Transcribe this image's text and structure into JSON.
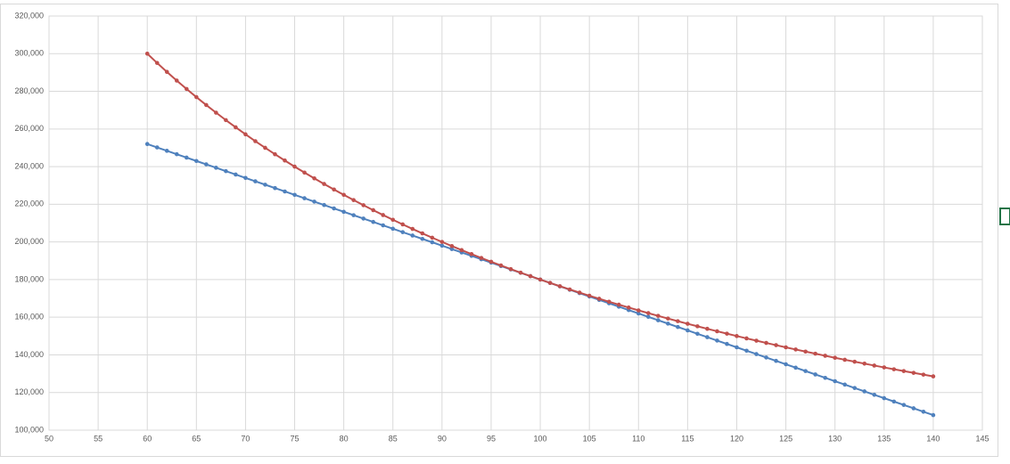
{
  "chart_data": {
    "type": "scatter-line",
    "x": [
      60,
      61,
      62,
      63,
      64,
      65,
      66,
      67,
      68,
      69,
      70,
      71,
      72,
      73,
      74,
      75,
      76,
      77,
      78,
      79,
      80,
      81,
      82,
      83,
      84,
      85,
      86,
      87,
      88,
      89,
      90,
      91,
      92,
      93,
      94,
      95,
      96,
      97,
      98,
      99,
      100,
      101,
      102,
      103,
      104,
      105,
      106,
      107,
      108,
      109,
      110,
      111,
      112,
      113,
      114,
      115,
      116,
      117,
      118,
      119,
      120,
      121,
      122,
      123,
      124,
      125,
      126,
      127,
      128,
      129,
      130,
      131,
      132,
      133,
      134,
      135,
      136,
      137,
      138,
      139,
      140
    ],
    "series": [
      {
        "color": "#4f81bd",
        "values": [
          252000,
          250200,
          248400,
          246600,
          244800,
          243000,
          241200,
          239400,
          237600,
          235800,
          234000,
          232200,
          230400,
          228600,
          226800,
          225000,
          223200,
          221400,
          219600,
          217800,
          216000,
          214200,
          212400,
          210600,
          208800,
          207000,
          205200,
          203400,
          201600,
          199800,
          198000,
          196200,
          194400,
          192600,
          190800,
          189000,
          187200,
          185400,
          183600,
          181800,
          180000,
          178200,
          176400,
          174600,
          172800,
          171000,
          169200,
          167400,
          165600,
          163800,
          162000,
          160200,
          158400,
          156600,
          154800,
          153000,
          151200,
          149400,
          147600,
          145800,
          144000,
          142200,
          140400,
          138600,
          136800,
          135000,
          133200,
          131400,
          129600,
          127800,
          126000,
          124200,
          122400,
          120600,
          118800,
          117000,
          115200,
          113400,
          111600,
          109800,
          108000
        ]
      },
      {
        "color": "#c0504d",
        "values": [
          300000,
          295082,
          290323,
          285714,
          281250,
          276923,
          272727,
          268657,
          264706,
          260870,
          257143,
          253521,
          250000,
          246575,
          243243,
          240000,
          236842,
          233766,
          230769,
          227848,
          225000,
          222222,
          219512,
          216867,
          214286,
          211765,
          209302,
          206897,
          204545,
          202247,
          200000,
          197802,
          195652,
          193548,
          191489,
          189474,
          187500,
          185567,
          183673,
          181818,
          180000,
          178218,
          176471,
          174757,
          173077,
          171429,
          169811,
          168224,
          166667,
          165138,
          163636,
          162162,
          160714,
          159292,
          157895,
          156522,
          155172,
          153846,
          152542,
          151261,
          150000,
          148760,
          147541,
          146341,
          145161,
          144000,
          142857,
          141732,
          140625,
          139535,
          138462,
          137405,
          136364,
          135338,
          134328,
          133333,
          132353,
          131387,
          130435,
          129496,
          128571
        ]
      }
    ],
    "xlim": [
      50,
      145
    ],
    "xticks": [
      50,
      55,
      60,
      65,
      70,
      75,
      80,
      85,
      90,
      95,
      100,
      105,
      110,
      115,
      120,
      125,
      130,
      135,
      140,
      145
    ],
    "ylim": [
      100000,
      320000
    ],
    "yticks": [
      {
        "value": 100000,
        "label": "100,000"
      },
      {
        "value": 120000,
        "label": "120,000"
      },
      {
        "value": 140000,
        "label": "140,000"
      },
      {
        "value": 160000,
        "label": "160,000"
      },
      {
        "value": 180000,
        "label": "180,000"
      },
      {
        "value": 200000,
        "label": "200,000"
      },
      {
        "value": 220000,
        "label": "220,000"
      },
      {
        "value": 240000,
        "label": "240,000"
      },
      {
        "value": 260000,
        "label": "260,000"
      },
      {
        "value": 280000,
        "label": "280,000"
      },
      {
        "value": 300000,
        "label": "300,000"
      },
      {
        "value": 320000,
        "label": "320,000"
      }
    ],
    "grid": true,
    "markers": true
  }
}
